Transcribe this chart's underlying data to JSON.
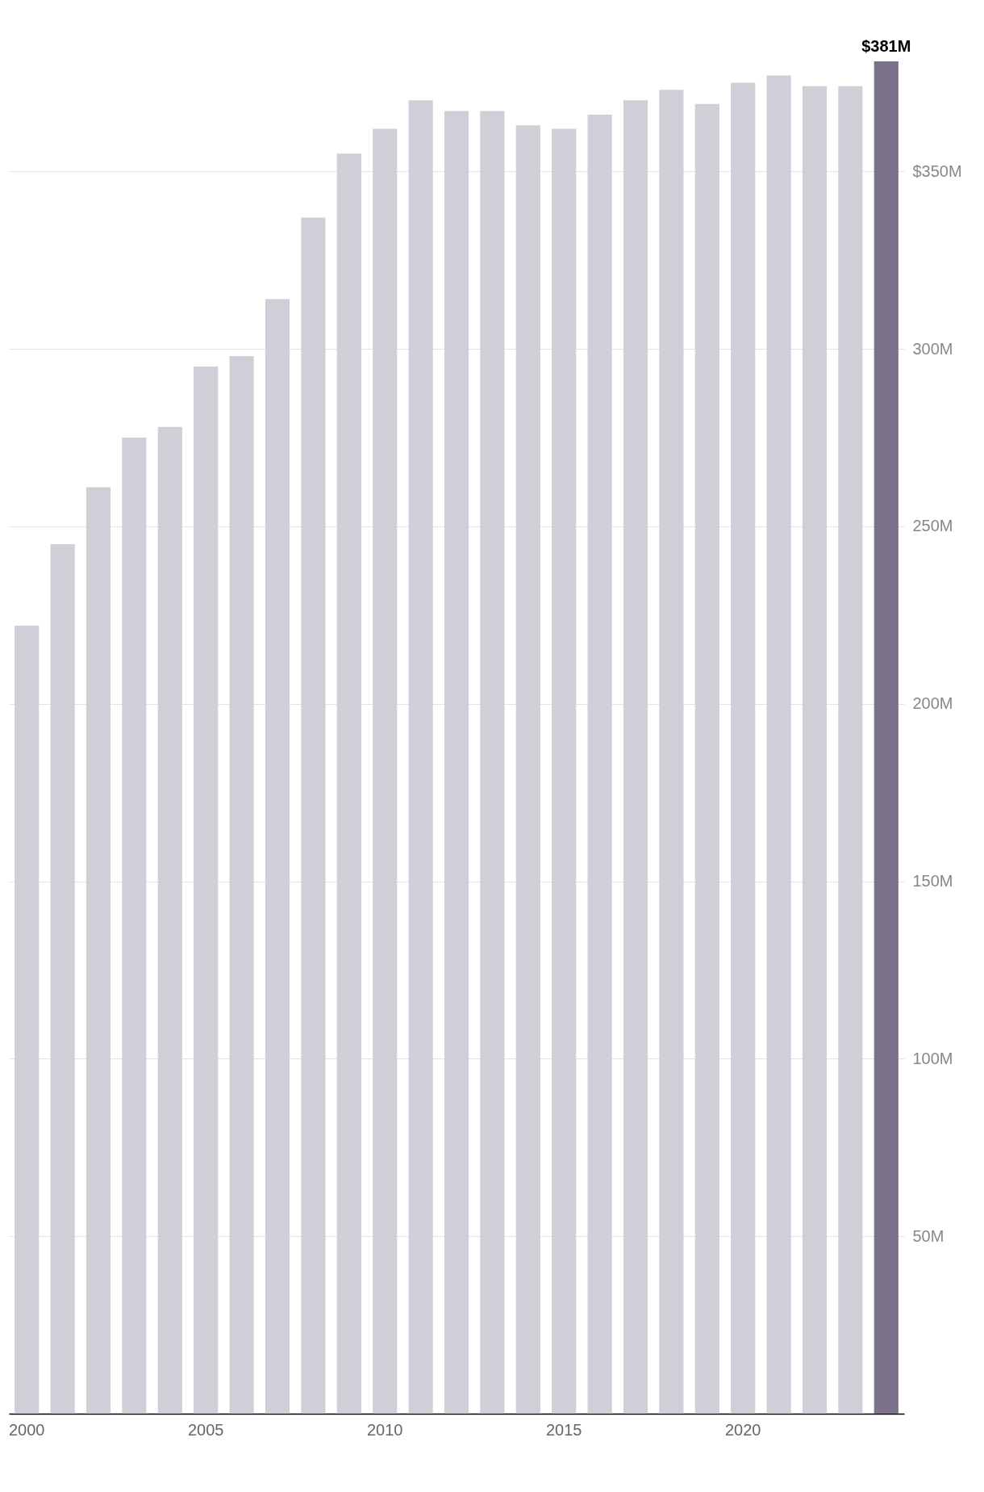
{
  "chart_data": {
    "type": "bar",
    "categories": [
      "2000",
      null,
      null,
      null,
      null,
      "2005",
      null,
      null,
      null,
      null,
      "2010",
      null,
      null,
      null,
      null,
      "2015",
      null,
      null,
      null,
      null,
      "2020",
      null,
      null,
      null,
      null
    ],
    "values": [
      222,
      245,
      261,
      275,
      278,
      295,
      298,
      314,
      337,
      355,
      362,
      370,
      367,
      367,
      363,
      362,
      366,
      370,
      373,
      369,
      375,
      377,
      374,
      374,
      381
    ],
    "colors": [
      "#d0ced6",
      "#d0ced6",
      "#d0ced6",
      "#d0ced6",
      "#d0ced6",
      "#d0ced6",
      "#d0ced6",
      "#d0ced6",
      "#d0ced6",
      "#d0ced6",
      "#d0ced6",
      "#d0ced6",
      "#d0ced6",
      "#d0ced6",
      "#d0ced6",
      "#d0ced6",
      "#d0ced6",
      "#d0ced6",
      "#d0ced6",
      "#d0ced6",
      "#d0ced6",
      "#d0ced6",
      "#d0ced6",
      "#d0ced6",
      "#7b7289"
    ],
    "value_labels": [
      null,
      null,
      null,
      null,
      null,
      null,
      null,
      null,
      null,
      null,
      null,
      null,
      null,
      null,
      null,
      null,
      null,
      null,
      null,
      null,
      null,
      null,
      null,
      null,
      "$381M"
    ],
    "ylim": [
      0,
      381
    ],
    "yticks": [
      {
        "value": 50,
        "label": "50M"
      },
      {
        "value": 100,
        "label": "100M"
      },
      {
        "value": 150,
        "label": "150M"
      },
      {
        "value": 200,
        "label": "200M"
      },
      {
        "value": 250,
        "label": "250M"
      },
      {
        "value": 300,
        "label": "300M"
      },
      {
        "value": 350,
        "label": "$350M"
      }
    ],
    "grid": "y"
  }
}
